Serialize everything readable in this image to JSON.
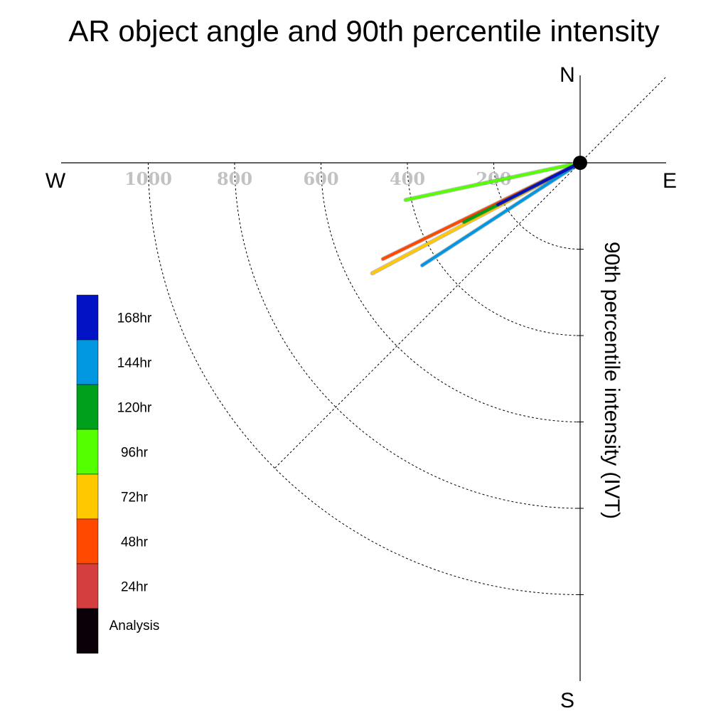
{
  "chart_data": {
    "type": "polar-line",
    "title": "AR object angle and 90th percentile intensity",
    "ylabel": "90th percentile intensity (IVT)",
    "compass": {
      "north": "N",
      "south": "S",
      "east": "E",
      "west": "W"
    },
    "radial_ticks": [
      200,
      400,
      600,
      800,
      1000
    ],
    "radial_tick_labels": [
      "200",
      "400",
      "600",
      "800",
      "1000"
    ],
    "rlim": [
      0,
      1200
    ],
    "quadrant": "south-west",
    "grid": true,
    "legend_position": "left",
    "center_marker": "black-dot",
    "series": [
      {
        "name": "168hr",
        "color": "#0012c4",
        "angle_deg": 243,
        "intensity": 214
      },
      {
        "name": "144hr",
        "color": "#0096e0",
        "angle_deg": 237,
        "intensity": 436
      },
      {
        "name": "120hr",
        "color": "#00a01c",
        "angle_deg": 243,
        "intensity": 302
      },
      {
        "name": "96hr",
        "color": "#54ff00",
        "angle_deg": 258,
        "intensity": 413
      },
      {
        "name": "72hr",
        "color": "#ffc800",
        "angle_deg": 242,
        "intensity": 545
      },
      {
        "name": "48hr",
        "color": "#ff4800",
        "angle_deg": 244,
        "intensity": 508
      },
      {
        "name": "24hr",
        "color": "#d43e3e",
        "angle_deg": 241,
        "intensity": 500
      },
      {
        "name": "Analysis",
        "color": "#0c0008",
        "angle_deg": 240,
        "intensity": 500
      }
    ],
    "drawn_lines": [
      "96hr",
      "72hr",
      "48hr",
      "120hr",
      "144hr",
      "168hr"
    ],
    "legend_order": [
      "168hr",
      "144hr",
      "120hr",
      "96hr",
      "72hr",
      "48hr",
      "24hr",
      "Analysis"
    ]
  }
}
